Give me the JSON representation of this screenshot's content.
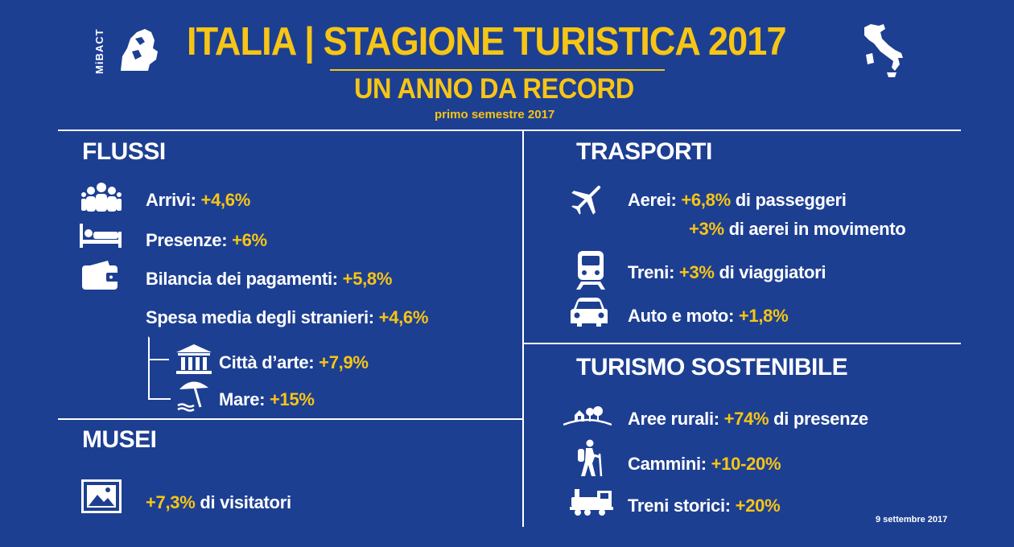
{
  "header": {
    "logo_text": "MiBACT",
    "title": "ITALIA | STAGIONE TURISTICA 2017",
    "subtitle": "UN ANNO DA RECORD",
    "period": "primo semestre 2017"
  },
  "flussi": {
    "title": "FLUSSI",
    "arrivi": {
      "label": "Arrivi:",
      "value": "+4,6%"
    },
    "presenze": {
      "label": "Presenze:",
      "value": "+6%"
    },
    "bilancia": {
      "label": "Bilancia dei pagamenti:",
      "value": "+5,8%"
    },
    "spesa": {
      "label": "Spesa media degli stranieri:",
      "value": "+4,6%"
    },
    "citta": {
      "label": "Città d’arte:",
      "value": "+7,9%"
    },
    "mare": {
      "label": "Mare:",
      "value": "+15%"
    }
  },
  "musei": {
    "title": "MUSEI",
    "visitatori": {
      "value": "+7,3%",
      "suffix": "di visitatori"
    }
  },
  "trasporti": {
    "title": "TRASPORTI",
    "aerei": {
      "label": "Aerei:",
      "value1": "+6,8%",
      "suffix1": "di passeggeri",
      "value2": "+3%",
      "suffix2": "di aerei in movimento"
    },
    "treni": {
      "label": "Treni:",
      "value": "+3%",
      "suffix": "di viaggiatori"
    },
    "auto": {
      "label": "Auto e moto:",
      "value": "+1,8%"
    }
  },
  "sostenibile": {
    "title": "TURISMO SOSTENIBILE",
    "aree": {
      "label": "Aree rurali:",
      "value": "+74%",
      "suffix": "di presenze"
    },
    "cammini": {
      "label": "Cammini:",
      "value": "+10-20%"
    },
    "storici": {
      "label": "Treni storici:",
      "value": "+20%"
    }
  },
  "footer": {
    "date": "9 settembre 2017"
  },
  "colors": {
    "background": "#1d3f92",
    "accent": "#f7c514",
    "text": "#ffffff"
  },
  "icons": [
    "mibact-logo",
    "italy-map-icon",
    "people-icon",
    "bed-icon",
    "wallet-icon",
    "museum-building-icon",
    "beach-umbrella-icon",
    "framed-picture-icon",
    "airplane-icon",
    "train-icon",
    "car-icon",
    "rural-village-icon",
    "hiker-icon",
    "steam-train-icon"
  ]
}
